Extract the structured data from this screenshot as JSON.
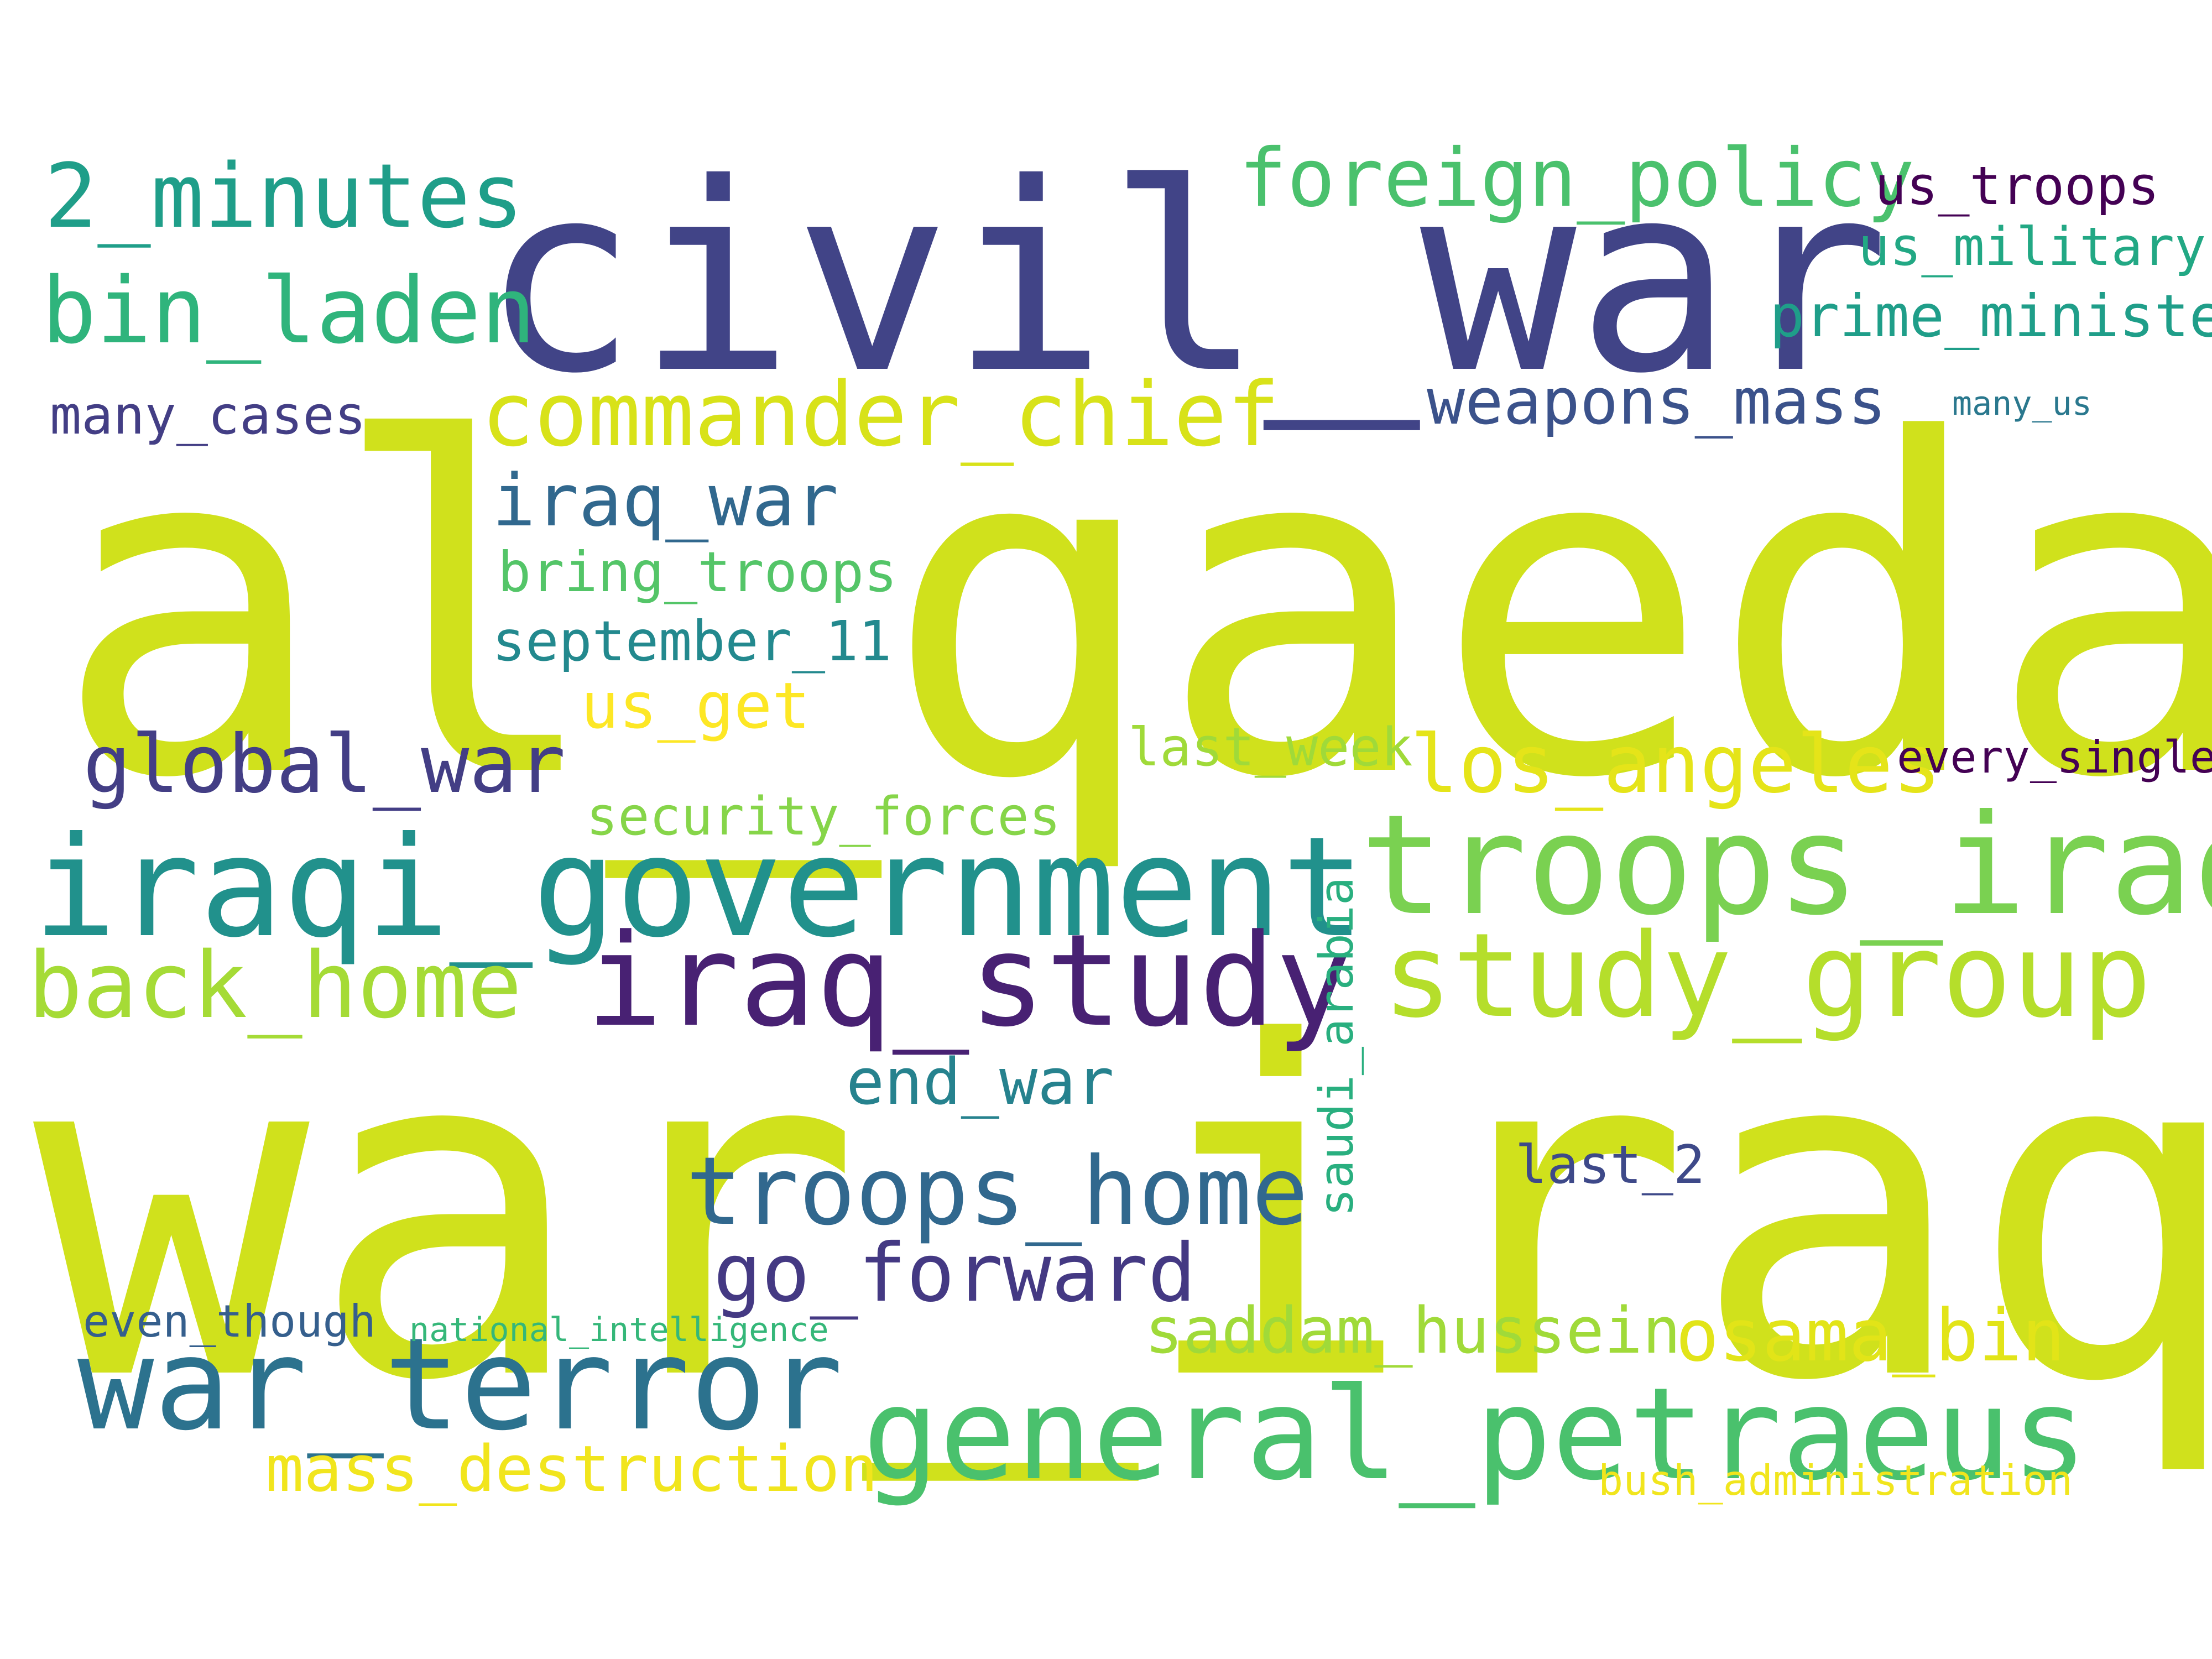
{
  "words": [
    {
      "text": "al_qaeda",
      "color": "#d0e11c",
      "vertical": false
    },
    {
      "text": "war_iraq",
      "color": "#d0e11c",
      "vertical": false
    },
    {
      "text": "civil_war",
      "color": "#414487",
      "vertical": false
    },
    {
      "text": "iraqi_government",
      "color": "#21918c",
      "vertical": false
    },
    {
      "text": "troops_iraq",
      "color": "#7ad151",
      "vertical": false
    },
    {
      "text": "general_petraeus",
      "color": "#4ac16d",
      "vertical": false
    },
    {
      "text": "iraq_study",
      "color": "#482173",
      "vertical": false
    },
    {
      "text": "study_group",
      "color": "#b5de2b",
      "vertical": false
    },
    {
      "text": "war_terror",
      "color": "#2c728e",
      "vertical": false
    },
    {
      "text": "commander_chief",
      "color": "#d8e219",
      "vertical": false
    },
    {
      "text": "troops_home",
      "color": "#31688e",
      "vertical": false
    },
    {
      "text": "foreign_policy",
      "color": "#4ac16d",
      "vertical": false
    },
    {
      "text": "bin_laden",
      "color": "#2fb47c",
      "vertical": false
    },
    {
      "text": "2_minutes",
      "color": "#1f9e89",
      "vertical": false
    },
    {
      "text": "back_home",
      "color": "#a5db36",
      "vertical": false
    },
    {
      "text": "global_war",
      "color": "#433e85",
      "vertical": false
    },
    {
      "text": "los_angeles",
      "color": "#e5e419",
      "vertical": false
    },
    {
      "text": "go_forward",
      "color": "#443983",
      "vertical": false
    },
    {
      "text": "osama_bin",
      "color": "#e2e418",
      "vertical": false
    },
    {
      "text": "iraq_war",
      "color": "#31688e",
      "vertical": false
    },
    {
      "text": "saddam_hussein",
      "color": "#a0da39",
      "vertical": false
    },
    {
      "text": "mass_destruction",
      "color": "#f1e51d",
      "vertical": false
    },
    {
      "text": "weapons_mass",
      "color": "#3b528b",
      "vertical": false
    },
    {
      "text": "end_war",
      "color": "#26828e",
      "vertical": false
    },
    {
      "text": "us_get",
      "color": "#fde725",
      "vertical": false
    },
    {
      "text": "prime_minister",
      "color": "#1f9e89",
      "vertical": false
    },
    {
      "text": "bring_troops",
      "color": "#54c568",
      "vertical": false
    },
    {
      "text": "september_11",
      "color": "#23898e",
      "vertical": false
    },
    {
      "text": "us_troops",
      "color": "#440154",
      "vertical": false
    },
    {
      "text": "us_military",
      "color": "#22a884",
      "vertical": false
    },
    {
      "text": "many_cases",
      "color": "#433e85",
      "vertical": false
    },
    {
      "text": "last_week",
      "color": "#a0da39",
      "vertical": false
    },
    {
      "text": "security_forces",
      "color": "#86d549",
      "vertical": false
    },
    {
      "text": "last_2",
      "color": "#3e4989",
      "vertical": false
    },
    {
      "text": "saudi_arabia",
      "color": "#29af7f",
      "vertical": true
    },
    {
      "text": "every_single",
      "color": "#440154",
      "vertical": false
    },
    {
      "text": "even_though",
      "color": "#355f8d",
      "vertical": false
    },
    {
      "text": "bush_administration",
      "color": "#f1e51d",
      "vertical": false
    },
    {
      "text": "national_intelligence",
      "color": "#35b779",
      "vertical": false
    },
    {
      "text": "many_us",
      "color": "#2a788e",
      "vertical": false
    }
  ]
}
